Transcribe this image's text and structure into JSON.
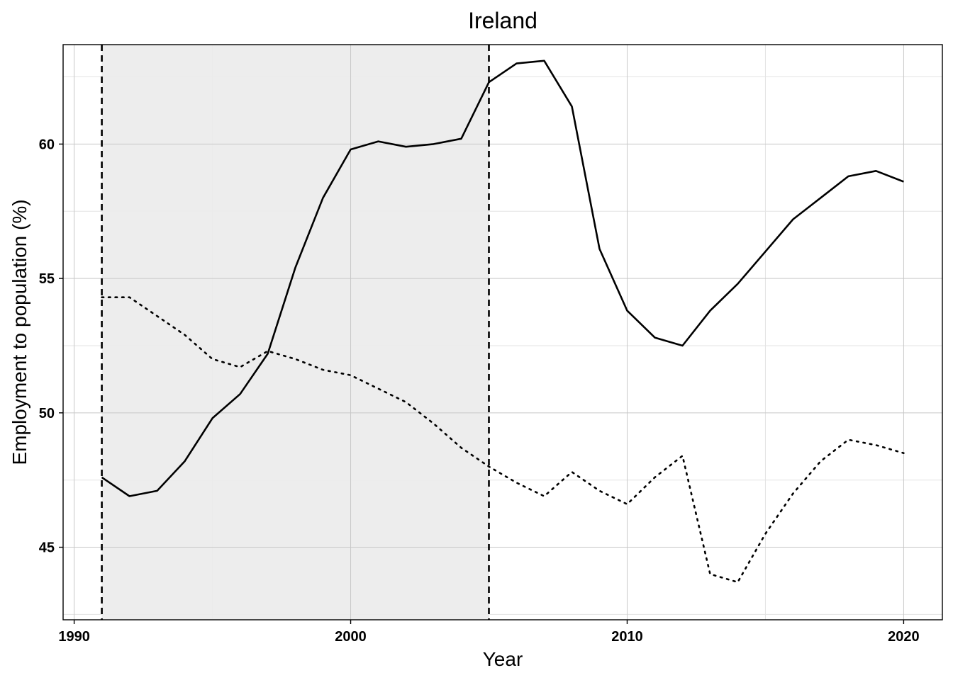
{
  "chart_data": {
    "type": "line",
    "title": "Ireland",
    "xlabel": "Year",
    "ylabel": "Employment to population (%)",
    "xlim": [
      1989.6,
      2021.4
    ],
    "ylim": [
      42.3,
      63.7
    ],
    "x_ticks": [
      1990,
      2000,
      2010,
      2020
    ],
    "y_ticks": [
      45,
      50,
      55,
      60
    ],
    "grid": true,
    "shaded_period": [
      1991,
      2005
    ],
    "vertical_dashed_lines": [
      1991,
      2005
    ],
    "colors": {
      "line": "#000000",
      "shade": "#ebebeb",
      "grid": "#d9d9d9"
    },
    "series": [
      {
        "style": "solid",
        "x": [
          1991,
          1992,
          1993,
          1994,
          1995,
          1996,
          1997,
          1998,
          1999,
          2000,
          2001,
          2002,
          2003,
          2004,
          2005,
          2006,
          2007,
          2008,
          2009,
          2010,
          2011,
          2012,
          2013,
          2014,
          2015,
          2016,
          2017,
          2018,
          2019,
          2020
        ],
        "values": [
          47.6,
          46.9,
          47.1,
          48.2,
          49.8,
          50.7,
          52.2,
          55.4,
          58.0,
          59.8,
          60.1,
          59.9,
          60.0,
          60.2,
          62.3,
          63.0,
          63.1,
          61.4,
          56.1,
          53.8,
          52.8,
          52.5,
          53.8,
          54.8,
          56.0,
          57.2,
          58.0,
          58.8,
          59.0,
          58.6
        ]
      },
      {
        "style": "dotted",
        "x": [
          1991,
          1992,
          1993,
          1994,
          1995,
          1996,
          1997,
          1998,
          1999,
          2000,
          2001,
          2002,
          2003,
          2004,
          2005,
          2006,
          2007,
          2008,
          2009,
          2010,
          2011,
          2012,
          2013,
          2014,
          2015,
          2016,
          2017,
          2018,
          2019,
          2020
        ],
        "values": [
          54.3,
          54.3,
          53.6,
          52.9,
          52.0,
          51.7,
          52.3,
          52.0,
          51.6,
          51.4,
          50.9,
          50.4,
          49.6,
          48.7,
          48.0,
          47.4,
          46.9,
          47.8,
          47.1,
          46.6,
          47.6,
          48.4,
          44.0,
          43.7,
          45.5,
          47.0,
          48.2,
          49.0,
          48.8,
          48.5
        ]
      }
    ]
  }
}
